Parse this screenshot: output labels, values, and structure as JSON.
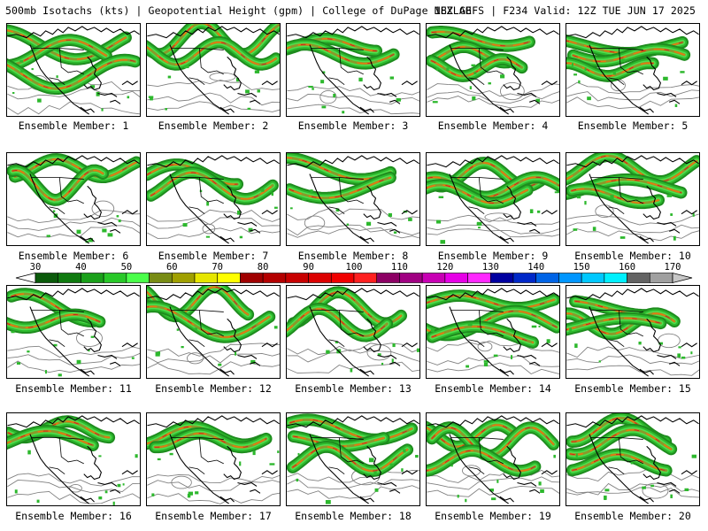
{
  "header": {
    "left": "500mb Isotachs (kts) | Geopotential Height (gpm) | College of DuPage NEXLAB",
    "right": "18Z GEFS | F234 Valid: 12Z TUE JUN 17 2025"
  },
  "colors": {
    "land_bg": "#ffffff",
    "coast_line": "#000000",
    "height_contour": "#808080",
    "jet_green_dark": "#1e8c1e",
    "jet_green": "#2db82d",
    "jet_green_light": "#4fe04f",
    "jet_olive": "#8a9a2a",
    "jet_orange": "#e87a10",
    "jet_red": "#c81e1e"
  },
  "members": [
    {
      "label": "Ensemble Member: 1"
    },
    {
      "label": "Ensemble Member: 2"
    },
    {
      "label": "Ensemble Member: 3"
    },
    {
      "label": "Ensemble Member: 4"
    },
    {
      "label": "Ensemble Member: 5"
    },
    {
      "label": "Ensemble Member: 6"
    },
    {
      "label": "Ensemble Member: 7"
    },
    {
      "label": "Ensemble Member: 8"
    },
    {
      "label": "Ensemble Member: 9"
    },
    {
      "label": "Ensemble Member: 10"
    },
    {
      "label": "Ensemble Member: 11"
    },
    {
      "label": "Ensemble Member: 12"
    },
    {
      "label": "Ensemble Member: 13"
    },
    {
      "label": "Ensemble Member: 14"
    },
    {
      "label": "Ensemble Member: 15"
    },
    {
      "label": "Ensemble Member: 16"
    },
    {
      "label": "Ensemble Member: 17"
    },
    {
      "label": "Ensemble Member: 18"
    },
    {
      "label": "Ensemble Member: 19"
    },
    {
      "label": "Ensemble Member: 20"
    }
  ],
  "colorbar": {
    "min": 30,
    "max": 170,
    "tick_labels": [
      "30",
      "40",
      "50",
      "60",
      "70",
      "80",
      "90",
      "100",
      "110",
      "120",
      "130",
      "140",
      "150",
      "160",
      "170"
    ],
    "bins": [
      {
        "from": 30,
        "to": 35,
        "color": "#0a5a0a"
      },
      {
        "from": 35,
        "to": 40,
        "color": "#0f7a0f"
      },
      {
        "from": 40,
        "to": 45,
        "color": "#1aa01a"
      },
      {
        "from": 45,
        "to": 50,
        "color": "#28c828"
      },
      {
        "from": 50,
        "to": 55,
        "color": "#4aff4a"
      },
      {
        "from": 55,
        "to": 60,
        "color": "#788c14"
      },
      {
        "from": 60,
        "to": 65,
        "color": "#a0a000"
      },
      {
        "from": 65,
        "to": 70,
        "color": "#e6e600"
      },
      {
        "from": 70,
        "to": 75,
        "color": "#ffff00"
      },
      {
        "from": 75,
        "to": 80,
        "color": "#a00000"
      },
      {
        "from": 80,
        "to": 85,
        "color": "#b40000"
      },
      {
        "from": 85,
        "to": 90,
        "color": "#c80000"
      },
      {
        "from": 90,
        "to": 95,
        "color": "#dc0000"
      },
      {
        "from": 95,
        "to": 100,
        "color": "#f00000"
      },
      {
        "from": 100,
        "to": 105,
        "color": "#ff2020"
      },
      {
        "from": 105,
        "to": 110,
        "color": "#8c0064"
      },
      {
        "from": 110,
        "to": 115,
        "color": "#a00082"
      },
      {
        "from": 115,
        "to": 120,
        "color": "#c800b4"
      },
      {
        "from": 120,
        "to": 125,
        "color": "#e600e6"
      },
      {
        "from": 125,
        "to": 130,
        "color": "#ff28ff"
      },
      {
        "from": 130,
        "to": 135,
        "color": "#0000a0"
      },
      {
        "from": 135,
        "to": 140,
        "color": "#0028c8"
      },
      {
        "from": 140,
        "to": 145,
        "color": "#0064e6"
      },
      {
        "from": 145,
        "to": 150,
        "color": "#0096ff"
      },
      {
        "from": 150,
        "to": 155,
        "color": "#00c8ff"
      },
      {
        "from": 155,
        "to": 160,
        "color": "#00f0ff"
      },
      {
        "from": 160,
        "to": 165,
        "color": "#646464"
      },
      {
        "from": 165,
        "to": 170,
        "color": "#a0a0a0"
      },
      {
        "from": 170,
        "to": 175,
        "color": "#c8c8c8"
      }
    ]
  }
}
